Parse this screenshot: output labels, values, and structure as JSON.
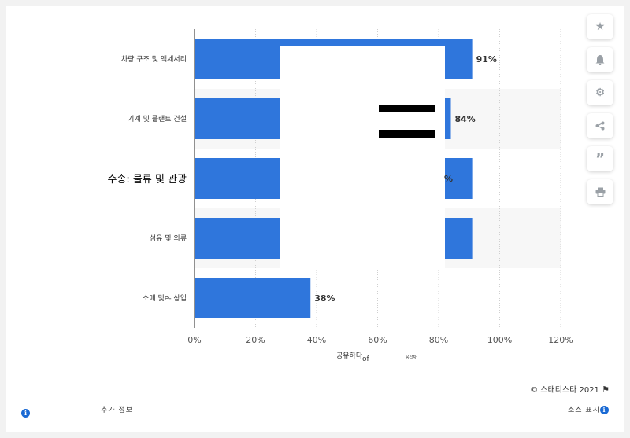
{
  "chart_data": {
    "type": "bar",
    "orientation": "horizontal",
    "categories": [
      "차량 구조 및 액세서리",
      "기계 및 플랜트 건설",
      "수송: 물류 및 관광",
      "섬유 및 의류",
      "소매 및e- 상업"
    ],
    "values": [
      91,
      84,
      null,
      null,
      38
    ],
    "data_labels": [
      "91%",
      "84%",
      "%",
      "",
      "38%"
    ],
    "xlim": [
      0,
      120
    ],
    "x_ticks": [
      "0%",
      "20%",
      "40%",
      "60%",
      "80%",
      "100%",
      "120%"
    ],
    "xlabel": "공유하다 of 응답자",
    "grid": true,
    "bar_color": "#2f76dc"
  },
  "footer": {
    "copyright": "스태티스타 2021",
    "more_info": "추가 정보",
    "source": "소스 표시"
  },
  "sidebar_icons": [
    "star-icon",
    "bell-icon",
    "gear-icon",
    "share-icon",
    "quote-icon",
    "print-icon"
  ]
}
